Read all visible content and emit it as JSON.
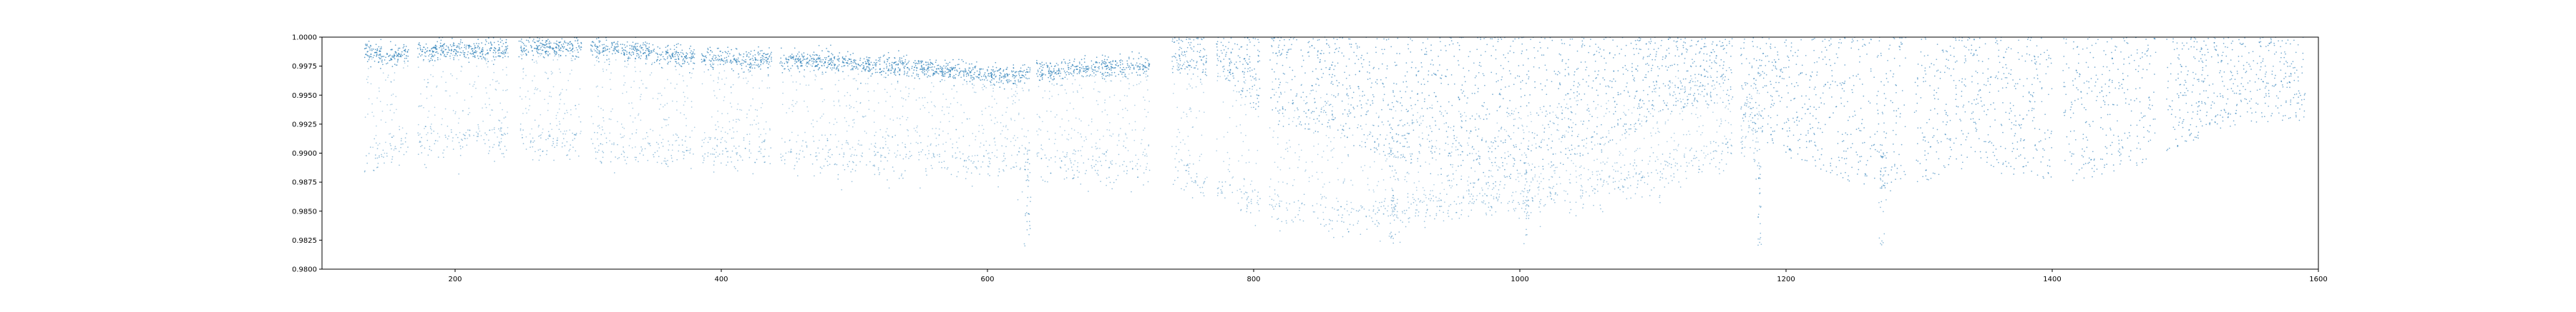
{
  "chart_data": {
    "type": "scatter",
    "title": "",
    "xlabel": "",
    "ylabel": "",
    "xlim": [
      100,
      1600
    ],
    "ylim": [
      0.98,
      1.0
    ],
    "grid": false,
    "legend": "none",
    "x_ticks": [
      200,
      400,
      600,
      800,
      1000,
      1200,
      1400,
      1600
    ],
    "y_ticks": [
      0.98,
      0.9825,
      0.985,
      0.9875,
      0.99,
      0.9925,
      0.995,
      0.9975,
      1.0
    ],
    "y_tick_labels": [
      "0.9800",
      "0.9825",
      "0.9850",
      "0.9875",
      "0.9900",
      "0.9925",
      "0.9950",
      "0.9975",
      "1.0000"
    ],
    "point_color": "#1f77b4",
    "series": [
      {
        "name": "",
        "note_x": "sampled x positions of dense upper band (flux near 1.0)",
        "x": [
          135,
          150,
          165,
          180,
          200,
          220,
          240,
          260,
          280,
          300,
          320,
          340,
          360,
          380,
          400,
          420,
          440,
          460,
          480,
          500,
          520,
          540,
          560,
          580,
          600,
          620,
          640,
          660,
          680,
          700,
          720
        ],
        "y": [
          0.9986,
          0.9985,
          0.9987,
          0.9988,
          0.9989,
          0.999,
          0.999,
          0.9991,
          0.9991,
          0.9991,
          0.999,
          0.9988,
          0.9985,
          0.9983,
          0.9981,
          0.998,
          0.9981,
          0.998,
          0.9979,
          0.9977,
          0.9975,
          0.9974,
          0.9972,
          0.997,
          0.9967,
          0.9968,
          0.997,
          0.9972,
          0.9973,
          0.9975,
          0.9976
        ]
      },
      {
        "name": "",
        "x": [
          740,
          760,
          780,
          800,
          820,
          840,
          860,
          880,
          900,
          920,
          940,
          960,
          980,
          1000,
          1020,
          1040,
          1060,
          1080,
          1100,
          1120,
          1140,
          1160,
          1180,
          1200,
          1220,
          1240,
          1260,
          1280,
          1300,
          1320,
          1340,
          1360,
          1380,
          1400,
          1420,
          1440,
          1460,
          1480,
          1500,
          1520,
          1540,
          1560,
          1580
        ],
        "y": [
          0.9985,
          0.9984,
          0.9982,
          0.997,
          0.9962,
          0.996,
          0.9958,
          0.9953,
          0.995,
          0.9945,
          0.994,
          0.9935,
          0.9938,
          0.994,
          0.9943,
          0.9948,
          0.9952,
          0.9958,
          0.9965,
          0.997,
          0.9971,
          0.9968,
          0.9958,
          0.995,
          0.9945,
          0.994,
          0.9938,
          0.9935,
          0.9938,
          0.9942,
          0.9945,
          0.9943,
          0.994,
          0.9938,
          0.994,
          0.9942,
          0.9945,
          0.995,
          0.9955,
          0.996,
          0.9962,
          0.9963,
          0.9965
        ]
      },
      {
        "name": "",
        "note": "lower sparse branch",
        "x": [
          135,
          160,
          200,
          250,
          300,
          350,
          400,
          450,
          500,
          550,
          600,
          650,
          700,
          720,
          740,
          780,
          820,
          860,
          900,
          950,
          1000,
          1050,
          1100,
          1140,
          1160,
          1180
        ],
        "y": [
          0.9895,
          0.9905,
          0.991,
          0.9912,
          0.9907,
          0.9903,
          0.99,
          0.9898,
          0.9897,
          0.9895,
          0.9893,
          0.989,
          0.9888,
          0.9887,
          0.9885,
          0.9868,
          0.9852,
          0.9845,
          0.9845,
          0.9858,
          0.986,
          0.9868,
          0.9882,
          0.9895,
          0.9905,
          0.991
        ]
      }
    ],
    "gaps_x": [
      [
        165,
        172
      ],
      [
        240,
        248
      ],
      [
        295,
        302
      ],
      [
        380,
        385
      ],
      [
        438,
        444
      ],
      [
        632,
        637
      ],
      [
        722,
        738
      ],
      [
        765,
        772
      ],
      [
        805,
        812
      ],
      [
        1160,
        1166
      ],
      [
        1290,
        1296
      ],
      [
        1400,
        1408
      ],
      [
        1478,
        1486
      ],
      [
        1590,
        1600
      ]
    ]
  }
}
